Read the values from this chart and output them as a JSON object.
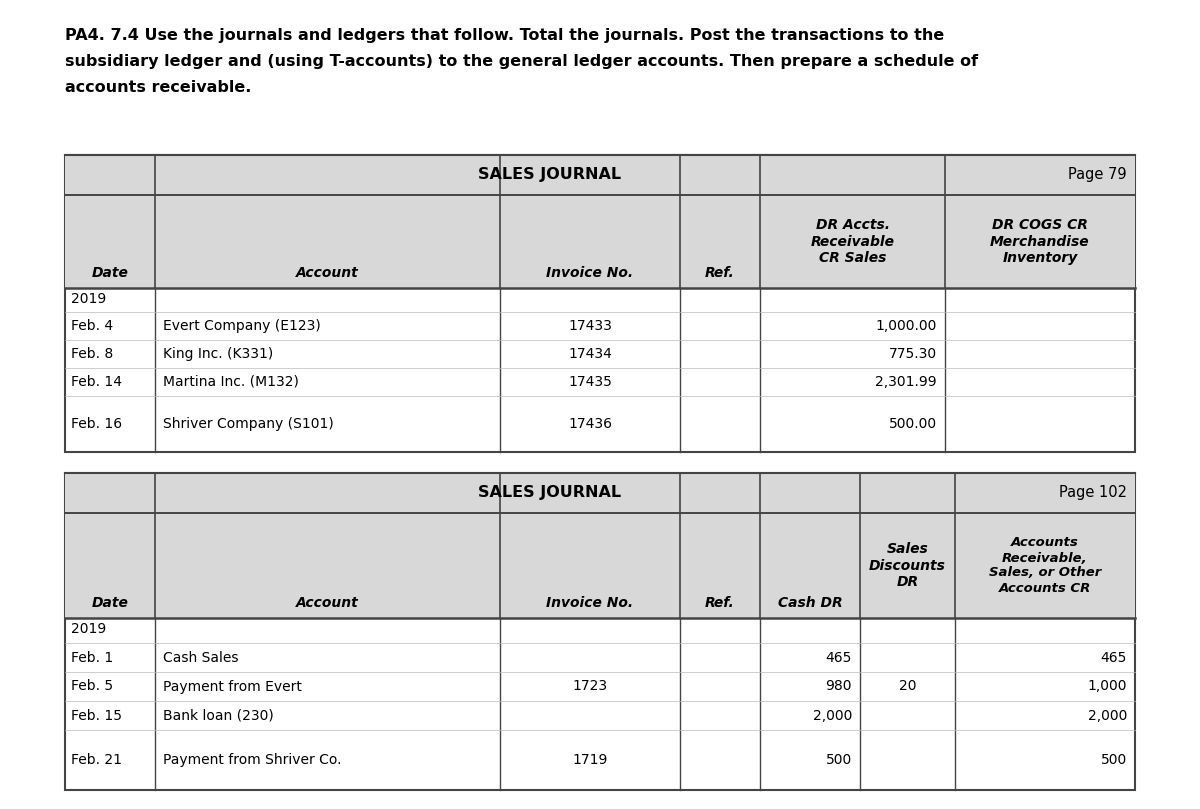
{
  "title_lines": [
    "PA4. 7.4 Use the journals and ledgers that follow. Total the journals. Post the transactions to the",
    "subsidiary ledger and (using T-accounts) to the general ledger accounts. Then prepare a schedule of",
    "accounts receivable."
  ],
  "bg_color": "#ffffff",
  "header_bg": "#d8d8d8",
  "table_border": "#444444",
  "font_color": "#000000",
  "table1": {
    "title": "SALES JOURNAL",
    "page": "Page 79",
    "col_headers_line1": [
      "",
      "",
      "",
      "",
      "DR Accts.",
      "DR COGS CR"
    ],
    "col_headers_line2": [
      "",
      "",
      "",
      "",
      "Receivable",
      "Merchandise"
    ],
    "col_headers_line3": [
      "Date",
      "Account",
      "Invoice No.",
      "Ref.",
      "CR Sales",
      "Inventory"
    ],
    "year_row": "2019",
    "rows": [
      [
        "Feb. 4",
        "Evert Company (E123)",
        "17433",
        "",
        "1,000.00",
        ""
      ],
      [
        "Feb. 8",
        "King Inc. (K331)",
        "17434",
        "",
        "775.30",
        ""
      ],
      [
        "Feb. 14",
        "Martina Inc. (M132)",
        "17435",
        "",
        "2,301.99",
        ""
      ],
      [
        "Feb. 16",
        "Shriver Company (S101)",
        "17436",
        "",
        "500.00",
        ""
      ]
    ]
  },
  "table2": {
    "title": "SALES JOURNAL",
    "page": "Page 102",
    "col_headers_line1": [
      "",
      "",
      "",
      "",
      "",
      "Sales",
      "Accounts"
    ],
    "col_headers_line2": [
      "",
      "",
      "",
      "",
      "",
      "Discounts",
      "Receivable,"
    ],
    "col_headers_line3": [
      "",
      "",
      "",
      "",
      "",
      "DR",
      "Sales, or Other"
    ],
    "col_headers_line4": [
      "Date",
      "Account",
      "Invoice No.",
      "Ref.",
      "Cash DR",
      "DR",
      "Accounts CR"
    ],
    "year_row": "2019",
    "rows": [
      [
        "Feb. 1",
        "Cash Sales",
        "",
        "",
        "465",
        "",
        "465"
      ],
      [
        "Feb. 5",
        "Payment from Evert",
        "1723",
        "",
        "980",
        "20",
        "1,000"
      ],
      [
        "Feb. 15",
        "Bank loan (230)",
        "",
        "",
        "2,000",
        "",
        "2,000"
      ],
      [
        "Feb. 21",
        "Payment from Shriver Co.",
        "1719",
        "",
        "500",
        "",
        "500"
      ]
    ]
  }
}
